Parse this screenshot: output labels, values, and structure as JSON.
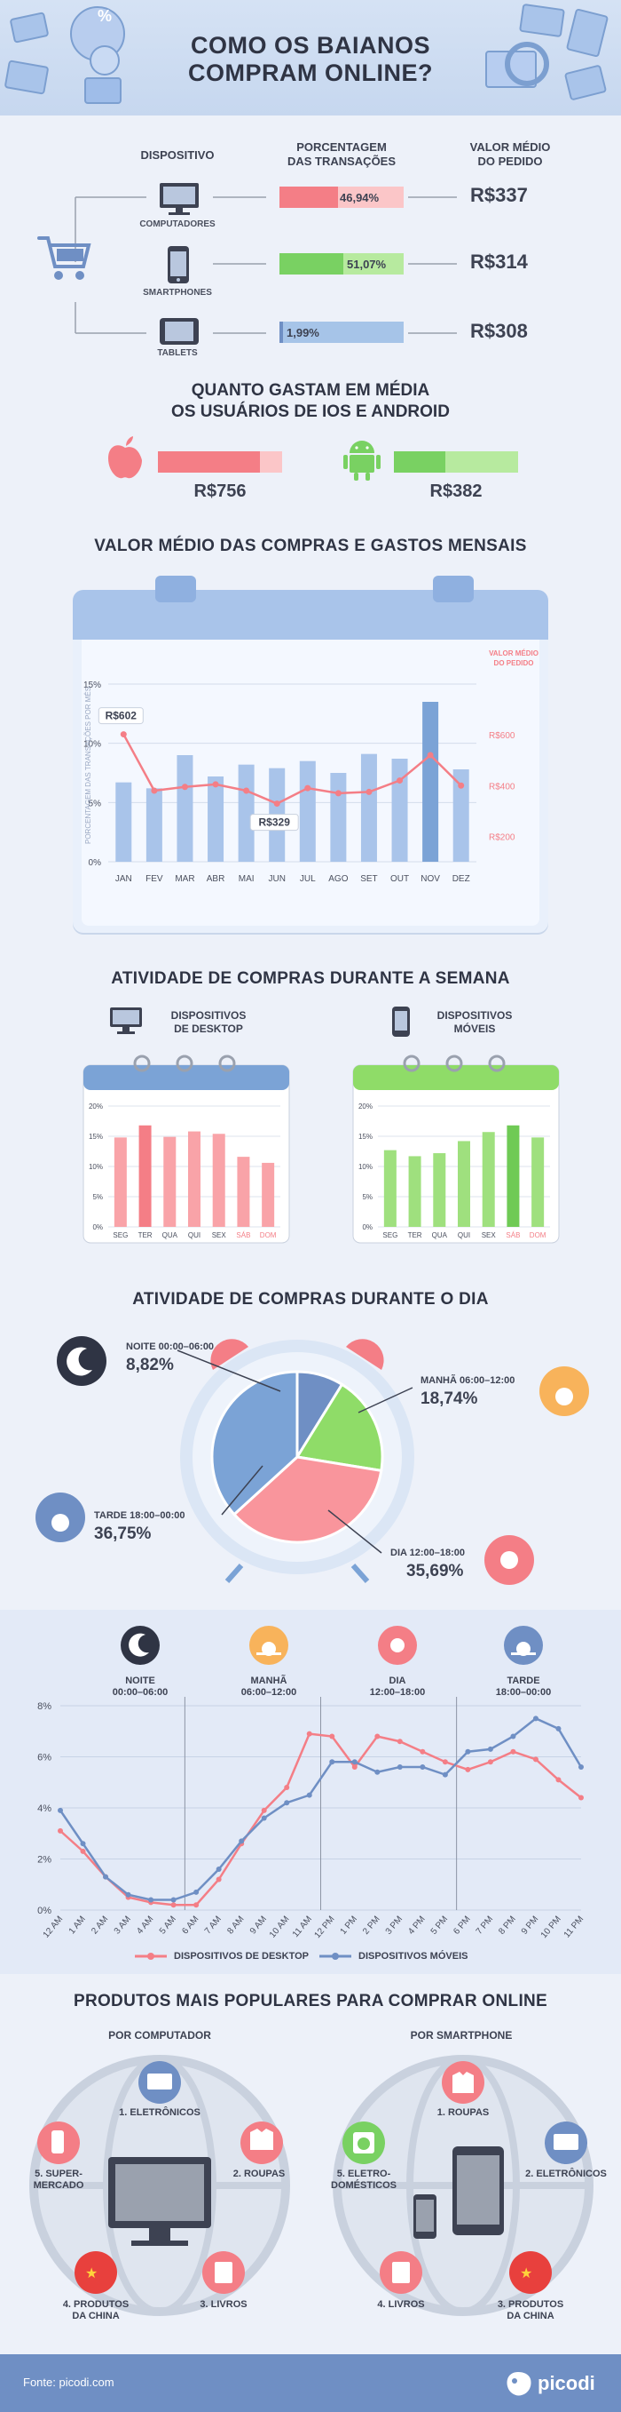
{
  "header": {
    "title_line1": "COMO OS BAIANOS",
    "title_line2": "COMPRAM ONLINE?"
  },
  "devices": {
    "col_device": "DISPOSITIVO",
    "col_share_l1": "PORCENTAGEM",
    "col_share_l2": "DAS TRANSAÇÕES",
    "col_value_l1": "VALOR MÉDIO",
    "col_value_l2": "DO PEDIDO",
    "rows": [
      {
        "name": "COMPUTADORES",
        "share_label": "46,94%",
        "share": 46.94,
        "value": "R$337",
        "color": "#f47e86",
        "track": "#fbc6c8"
      },
      {
        "name": "SMARTPHONES",
        "share_label": "51,07%",
        "share": 51.07,
        "value": "R$314",
        "color": "#79d162",
        "track": "#b7ea9f"
      },
      {
        "name": "TABLETS",
        "share_label": "1,99%",
        "share": 1.99,
        "value": "R$308",
        "color": "#6f8fc4",
        "track": "#a6c4e8"
      }
    ]
  },
  "os": {
    "title_l1": "QUANTO GASTAM EM MÉDIA",
    "title_l2": "OS USUÁRIOS DE IOS E ANDROID",
    "ios_value": "R$756",
    "android_value": "R$382",
    "ios_fill": 0.82,
    "android_fill": 0.41
  },
  "monthly": {
    "title": "VALOR MÉDIO DAS COMPRAS E GASTOS MENSAIS",
    "right_label_l1": "VALOR MÉDIO",
    "right_label_l2": "DO PEDIDO",
    "y_label": "PORCENTAGEM DAS TRANSAÇÕES POR MÊS",
    "callout_max": "R$602",
    "callout_min": "R$329"
  },
  "weekly": {
    "title": "ATIVIDADE DE COMPRAS DURANTE A SEMANA",
    "desktop_l1": "DISPOSITIVOS",
    "desktop_l2": "DE DESKTOP",
    "mobile_l1": "DISPOSITIVOS",
    "mobile_l2": "MÓVEIS"
  },
  "daily": {
    "title": "ATIVIDADE DE COMPRAS DURANTE O DIA",
    "slices": [
      {
        "label": "NOITE 00:00–06:00",
        "value": "8,82%",
        "pct": 8.82,
        "color": "#6f8fc4"
      },
      {
        "label": "MANHÃ 06:00–12:00",
        "value": "18,74%",
        "pct": 18.74,
        "color": "#8fdc68"
      },
      {
        "label": "DIA 12:00–18:00",
        "value": "35,69%",
        "pct": 35.69,
        "color": "#f9959c"
      },
      {
        "label": "TARDE 18:00–00:00",
        "value": "36,75%",
        "pct": 36.75,
        "color": "#7ba3d6"
      }
    ]
  },
  "hourly": {
    "periods": [
      {
        "l1": "NOITE",
        "l2": "00:00–06:00"
      },
      {
        "l1": "MANHÃ",
        "l2": "06:00–12:00"
      },
      {
        "l1": "DIA",
        "l2": "12:00–18:00"
      },
      {
        "l1": "TARDE",
        "l2": "18:00–00:00"
      }
    ],
    "legend_desktop": "DISPOSITIVOS DE DESKTOP",
    "legend_mobile": "DISPOSITIVOS MÓVEIS"
  },
  "products": {
    "title": "PRODUTOS MAIS POPULARES PARA COMPRAR ONLINE",
    "computer_title": "POR COMPUTADOR",
    "phone_title": "POR SMARTPHONE",
    "computer_items": [
      "1. ELETRÔNICOS",
      "2. ROUPAS",
      "3. LIVROS",
      "4. PRODUTOS\nDA CHINA",
      "5. SUPER-\nMERCADO"
    ],
    "phone_items": [
      "1. ROUPAS",
      "2. ELETRÔNICOS",
      "3. PRODUTOS\nDA CHINA",
      "4. LIVROS",
      "5. ELETRO-\nDOMÉSTICOS"
    ]
  },
  "footer": {
    "source": "Fonte: picodi.com",
    "brand": "picodi"
  },
  "chart_data": [
    {
      "type": "bar",
      "title": "VALOR MÉDIO DAS COMPRAS E GASTOS MENSAIS",
      "categories": [
        "JAN",
        "FEV",
        "MAR",
        "ABR",
        "MAI",
        "JUN",
        "JUL",
        "AGO",
        "SET",
        "OUT",
        "NOV",
        "DEZ"
      ],
      "ylabel": "PORCENTAGEM DAS TRANSAÇÕES POR MÊS",
      "ylim": [
        0,
        15
      ],
      "yticks": [
        "0%",
        "5%",
        "10%",
        "15%"
      ],
      "series": [
        {
          "name": "PORCENTAGEM DAS TRANSAÇÕES POR MÊS",
          "values": [
            6.7,
            6.2,
            9.0,
            7.2,
            8.2,
            7.9,
            8.5,
            7.5,
            9.1,
            8.7,
            13.5,
            7.8
          ]
        },
        {
          "name": "VALOR MÉDIO DO PEDIDO",
          "values": [
            602,
            380,
            395,
            405,
            380,
            329,
            390,
            370,
            375,
            420,
            520,
            400
          ]
        }
      ],
      "y2lim": [
        100,
        800
      ],
      "y2ticks": [
        "R$200",
        "R$400",
        "R$600"
      ]
    },
    {
      "type": "bar",
      "title": "DISPOSITIVOS DE DESKTOP",
      "categories": [
        "SEG",
        "TER",
        "QUA",
        "QUI",
        "SEX",
        "SÁB",
        "DOM"
      ],
      "ylim": [
        0,
        20
      ],
      "yticks": [
        "0%",
        "5%",
        "10%",
        "15%",
        "20%"
      ],
      "values": [
        14.8,
        16.8,
        14.9,
        15.8,
        15.4,
        11.6,
        10.6
      ]
    },
    {
      "type": "bar",
      "title": "DISPOSITIVOS MÓVEIS",
      "categories": [
        "SEG",
        "TER",
        "QUA",
        "QUI",
        "SEX",
        "SÁB",
        "DOM"
      ],
      "ylim": [
        0,
        20
      ],
      "yticks": [
        "0%",
        "5%",
        "10%",
        "15%",
        "20%"
      ],
      "values": [
        12.7,
        11.7,
        12.2,
        14.2,
        15.7,
        16.8,
        14.8
      ]
    },
    {
      "type": "pie",
      "title": "ATIVIDADE DE COMPRAS DURANTE O DIA",
      "categories": [
        "NOITE 00:00–06:00",
        "MANHÃ 06:00–12:00",
        "DIA 12:00–18:00",
        "TARDE 18:00–00:00"
      ],
      "values": [
        8.82,
        18.74,
        35.69,
        36.75
      ]
    },
    {
      "type": "line",
      "x": [
        "12 AM",
        "1 AM",
        "2 AM",
        "3 AM",
        "4 AM",
        "5 AM",
        "6 AM",
        "7 AM",
        "8 AM",
        "9 AM",
        "10 AM",
        "11 AM",
        "12 PM",
        "1 PM",
        "2 PM",
        "3 PM",
        "4 PM",
        "5 PM",
        "6 PM",
        "7 PM",
        "8 PM",
        "9 PM",
        "10 PM",
        "11 PM"
      ],
      "ylim": [
        0,
        8
      ],
      "yticks": [
        "0%",
        "2%",
        "4%",
        "6%",
        "8%"
      ],
      "series": [
        {
          "name": "DISPOSITIVOS DE DESKTOP",
          "values": [
            3.1,
            2.3,
            1.3,
            0.5,
            0.3,
            0.2,
            0.2,
            1.2,
            2.6,
            3.9,
            4.8,
            6.9,
            6.8,
            5.6,
            6.8,
            6.6,
            6.2,
            5.8,
            5.5,
            5.8,
            6.2,
            5.9,
            5.1,
            4.4
          ]
        },
        {
          "name": "DISPOSITIVOS MÓVEIS",
          "values": [
            3.9,
            2.6,
            1.3,
            0.6,
            0.4,
            0.4,
            0.7,
            1.6,
            2.7,
            3.6,
            4.2,
            4.5,
            5.8,
            5.8,
            5.4,
            5.6,
            5.6,
            5.3,
            6.2,
            6.3,
            6.8,
            7.5,
            7.1,
            5.6
          ]
        }
      ]
    }
  ]
}
